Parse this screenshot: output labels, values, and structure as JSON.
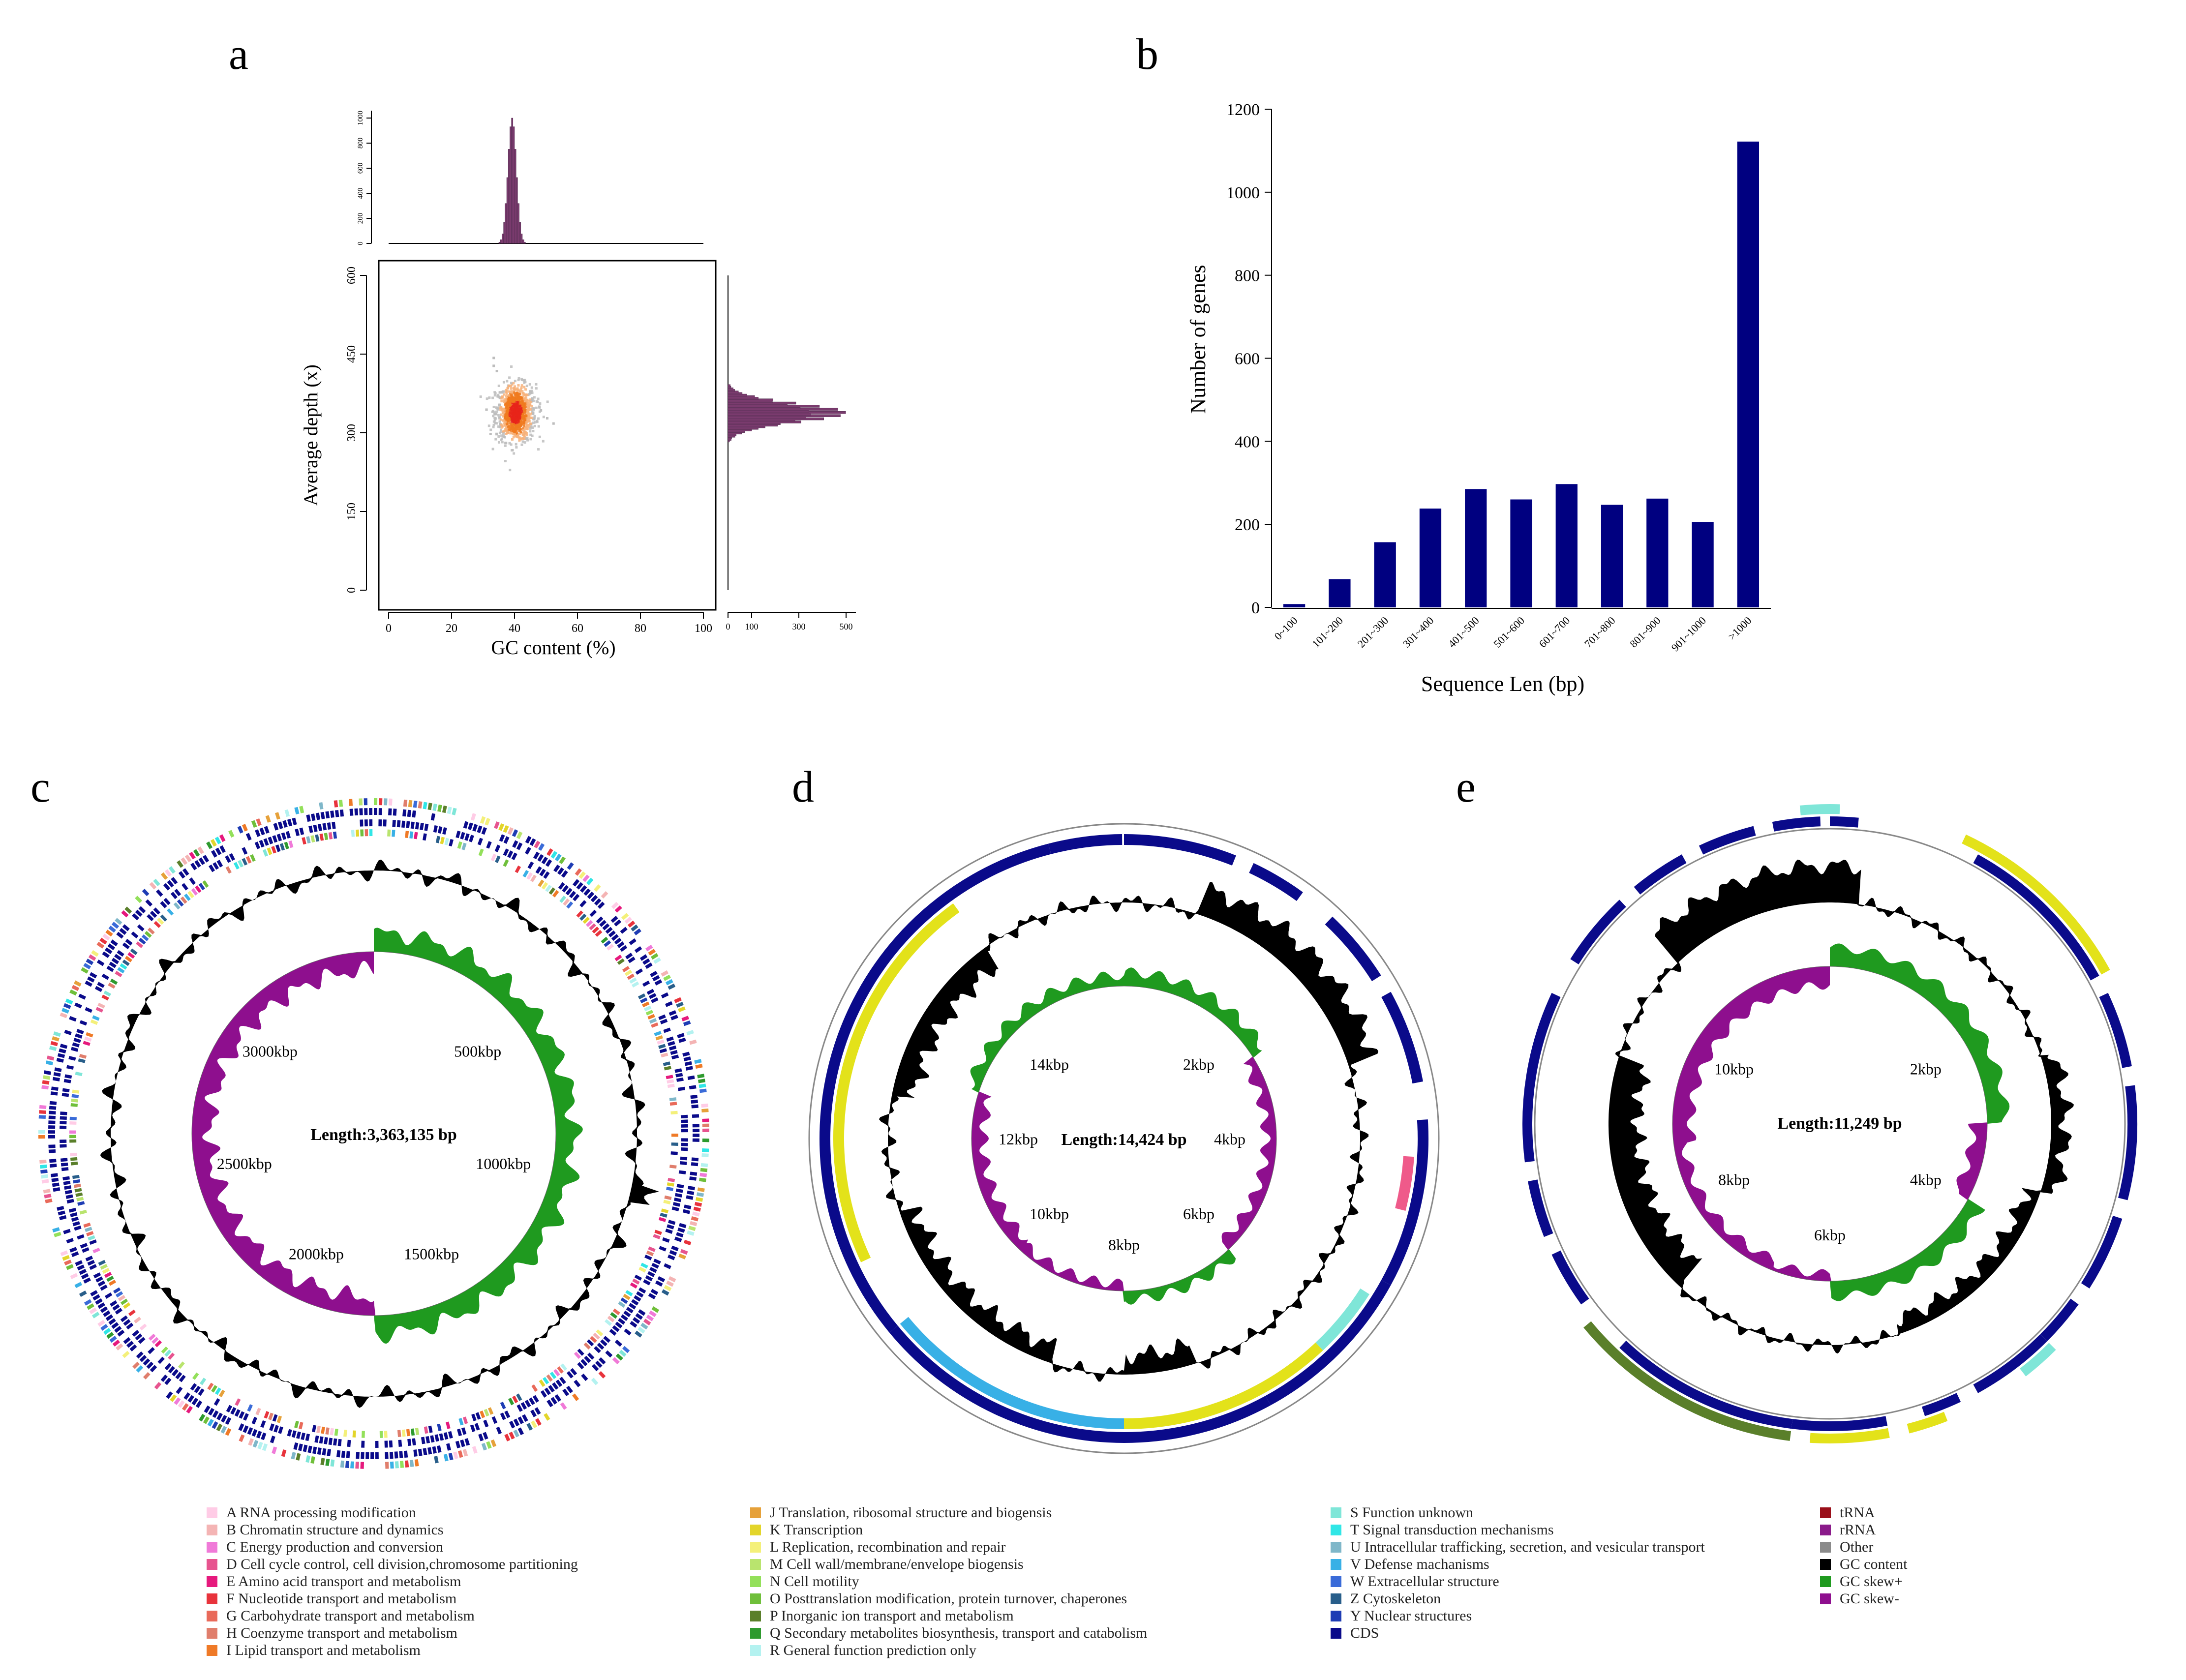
{
  "panels": {
    "a": "a",
    "b": "b",
    "c": "c",
    "d": "d",
    "e": "e"
  },
  "chart_data": [
    {
      "id": "a",
      "type": "scatter",
      "title": "",
      "xlabel": "GC content (%)",
      "ylabel": "Average depth (x)",
      "xlim": [
        0,
        100
      ],
      "ylim": [
        0,
        600
      ],
      "xticks": [
        "0",
        "20",
        "40",
        "60",
        "80",
        "100"
      ],
      "yticks": [
        "0",
        "150",
        "300",
        "450",
        "600"
      ],
      "cluster": {
        "gc_center": 40,
        "depth_center": 340,
        "gc_spread": 4,
        "depth_spread": 45
      },
      "top_histogram": {
        "ticks": [
          "0",
          "200",
          "400",
          "600",
          "800",
          "1000"
        ],
        "peak_gc": 39,
        "peak_count": 1000
      },
      "right_histogram": {
        "ticks": [
          "0",
          "100",
          "300",
          "500"
        ],
        "peak_depth": 340,
        "peak_count": 500
      }
    },
    {
      "id": "b",
      "type": "bar",
      "title": "",
      "xlabel": "Sequence Len (bp)",
      "ylabel": "Number of genes",
      "categories": [
        "0~100",
        "101~200",
        "201~300",
        "301~400",
        "401~500",
        "501~600",
        "601~700",
        "701~800",
        "801~900",
        "901~1000",
        ">1000"
      ],
      "values": [
        8,
        68,
        157,
        238,
        285,
        260,
        297,
        247,
        262,
        206,
        1122
      ],
      "ylim": [
        0,
        1200
      ],
      "yticks": [
        "0",
        "200",
        "400",
        "600",
        "800",
        "1000",
        "1200"
      ],
      "color": "#000080"
    },
    {
      "id": "c",
      "type": "circular-genome",
      "length_label": "Length:3,363,135 bp",
      "position_labels": [
        "500kbp",
        "1000kbp",
        "1500kbp",
        "2000kbp",
        "2500kbp",
        "3000kbp"
      ]
    },
    {
      "id": "d",
      "type": "circular-genome",
      "length_label": "Length:14,424 bp",
      "position_labels": [
        "2kbp",
        "4kbp",
        "6kbp",
        "8kbp",
        "10kbp",
        "12kbp",
        "14kbp"
      ]
    },
    {
      "id": "e",
      "type": "circular-genome",
      "length_label": "Length:11,249 bp",
      "position_labels": [
        "2kbp",
        "4kbp",
        "6kbp",
        "8kbp",
        "10kbp"
      ]
    }
  ],
  "legend": {
    "col1": [
      {
        "label": "A RNA processing modification",
        "color": "#ffcce6"
      },
      {
        "label": "B Chromatin structure and dynamics",
        "color": "#f4b4b4"
      },
      {
        "label": "C Energy production and conversion",
        "color": "#f07ad8"
      },
      {
        "label": "D Cell cycle control, cell division,chromosome partitioning",
        "color": "#e7548f"
      },
      {
        "label": "E Amino acid transport and metabolism",
        "color": "#e6197d"
      },
      {
        "label": "F Nucleotide transport and metabolism",
        "color": "#e8333c"
      },
      {
        "label": "G Carbohydrate transport and metabolism",
        "color": "#e96a5a"
      },
      {
        "label": "H Coenzyme transport and metabolism",
        "color": "#e07e6c"
      },
      {
        "label": "I Lipid transport and metabolism",
        "color": "#ef7a27"
      }
    ],
    "col2": [
      {
        "label": "J Translation, ribosomal structure and biogensis",
        "color": "#e6a13a"
      },
      {
        "label": "K Transcription",
        "color": "#e3d52a"
      },
      {
        "label": "L Replication, recombination and repair",
        "color": "#f4f07a"
      },
      {
        "label": "M Cell wall/membrane/envelope biogensis",
        "color": "#b9e46e"
      },
      {
        "label": "N Cell motility",
        "color": "#93e05a"
      },
      {
        "label": "O Posttranslation modification, protein turnover, chaperones",
        "color": "#6fbf3a"
      },
      {
        "label": "P Inorganic ion transport and metabolism",
        "color": "#5a7f2a"
      },
      {
        "label": "Q Secondary metabolites biosynthesis, transport and catabolism",
        "color": "#2e9a2e"
      },
      {
        "label": "R General function prediction only",
        "color": "#b4f2f0"
      }
    ],
    "col3": [
      {
        "label": "S Function unknown",
        "color": "#7fe6d8"
      },
      {
        "label": "T Signal transduction mechanisms",
        "color": "#30e6e6"
      },
      {
        "label": "U Intracellular trafficking, secretion, and vesicular transport",
        "color": "#7fb7c9"
      },
      {
        "label": "V Defense machanisms",
        "color": "#38b0e6"
      },
      {
        "label": "W Extracellular structure",
        "color": "#3a6bd8"
      },
      {
        "label": "Z Cytoskeleton",
        "color": "#285e8a"
      },
      {
        "label": "Y Nuclear structures",
        "color": "#1e3cb4"
      },
      {
        "label": "CDS",
        "color": "#0a0a8a"
      }
    ],
    "col4": [
      {
        "label": "tRNA",
        "color": "#9a0f1a"
      },
      {
        "label": "rRNA",
        "color": "#8a1a8a"
      },
      {
        "label": "Other",
        "color": "#8a8a8a"
      },
      {
        "label": "GC content",
        "color": "#000000"
      },
      {
        "label": "GC skew+",
        "color": "#1f9a1f"
      },
      {
        "label": "GC skew-",
        "color": "#8e0f8e"
      }
    ]
  }
}
